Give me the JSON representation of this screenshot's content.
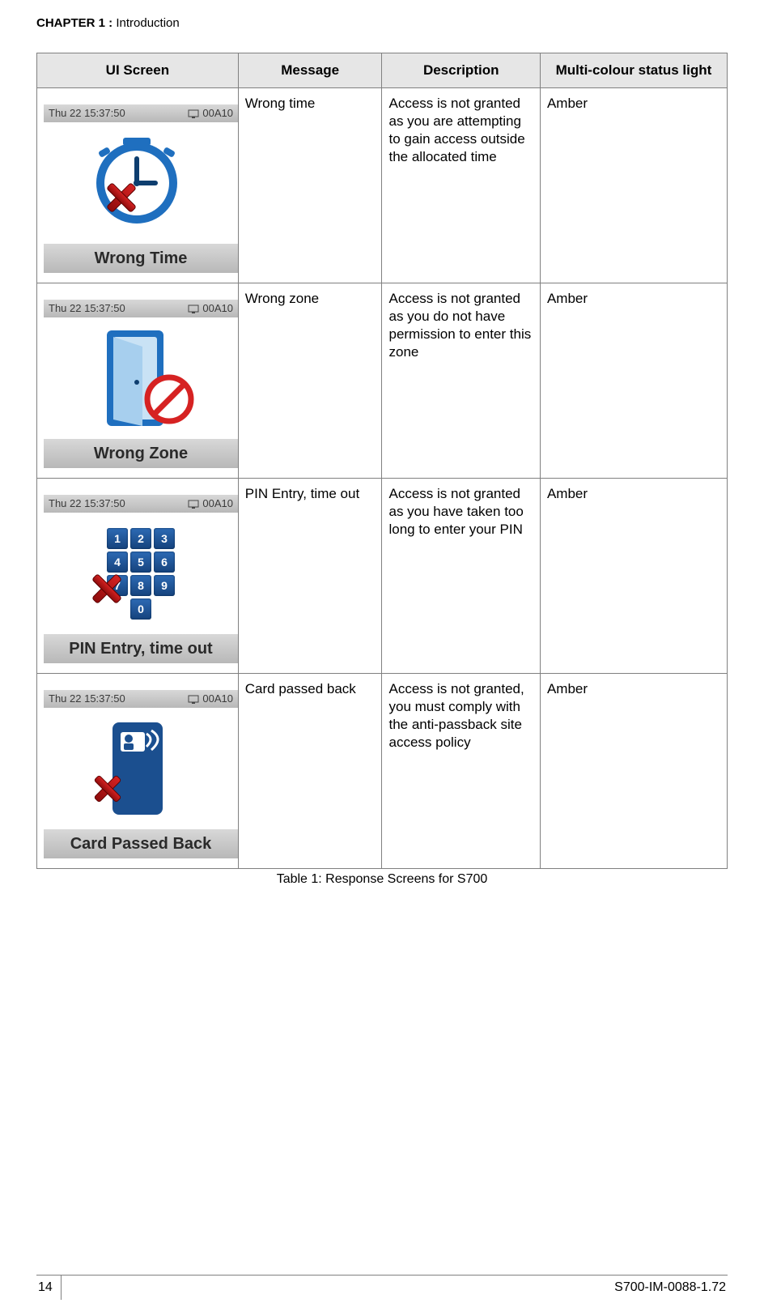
{
  "header": {
    "chapter_bold": "CHAPTER  1 :",
    "chapter_reg": " Introduction"
  },
  "table": {
    "headers": {
      "ui": "UI Screen",
      "msg": "Message",
      "desc": "Description",
      "status": "Multi-colour status light"
    },
    "statusbar": {
      "time": "Thu 22 15:37:50",
      "code": "00A10"
    },
    "rows": [
      {
        "footer": "Wrong Time",
        "message": "Wrong time",
        "description": "Access is not granted as you are attempting to gain access outside the allocated time",
        "status": "Amber",
        "icon": "clock"
      },
      {
        "footer": "Wrong Zone",
        "message": "Wrong zone",
        "description": "Access is not granted as you do not have permission to enter this zone",
        "status": "Amber",
        "icon": "door"
      },
      {
        "footer": "PIN Entry, time out",
        "message": "PIN Entry, time out",
        "description": "Access is not granted as you have taken too long to enter your PIN",
        "status": "Amber",
        "icon": "keypad"
      },
      {
        "footer": "Card Passed Back",
        "message": "Card passed back",
        "description": "Access is not granted, you must comply with the anti-passback site access policy",
        "status": "Amber",
        "icon": "card"
      }
    ]
  },
  "caption": "Table 1: Response Screens for S700",
  "footer": {
    "page": "14",
    "doc": "S700-IM-0088-1.72"
  },
  "colors": {
    "clock_blue": "#1f6fbf",
    "clock_dark": "#0e3e6f",
    "red": "#d62222",
    "red_dark": "#8e0c0c",
    "door_frame": "#1f6fbf",
    "door_inner": "#c9e2f5",
    "card_blue": "#1b4f8f",
    "header_bg": "#e6e6e6",
    "border": "#808080"
  }
}
